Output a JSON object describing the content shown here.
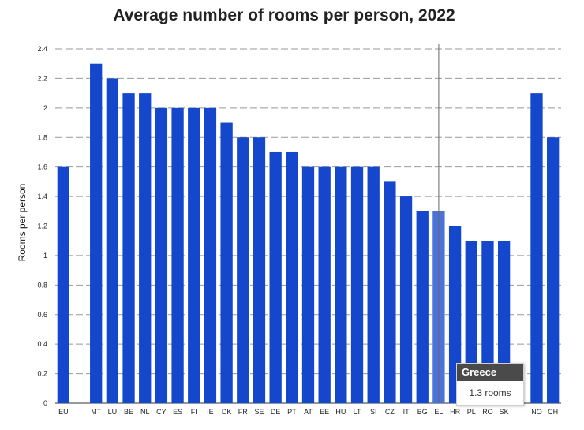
{
  "chart_data": {
    "type": "bar",
    "title": "Average number of rooms per person, 2022",
    "xlabel": "",
    "ylabel": "Rooms per person",
    "ylim": [
      0,
      2.4
    ],
    "yticks": [
      "0",
      "0.2",
      "0.4",
      "0.6",
      "0.8",
      "1",
      "1.2",
      "1.4",
      "1.6",
      "1.8",
      "2",
      "2.2",
      "2.4"
    ],
    "grid": true,
    "categories": [
      "EU",
      "",
      "MT",
      "LU",
      "BE",
      "NL",
      "CY",
      "ES",
      "FI",
      "IE",
      "DK",
      "FR",
      "SE",
      "DE",
      "PT",
      "AT",
      "EE",
      "HU",
      "LT",
      "SI",
      "CZ",
      "IT",
      "BG",
      "EL",
      "HR",
      "PL",
      "RO",
      "SK",
      "",
      "NO",
      "CH"
    ],
    "values": [
      1.6,
      null,
      2.3,
      2.2,
      2.1,
      2.1,
      2.0,
      2.0,
      2.0,
      2.0,
      1.9,
      1.8,
      1.8,
      1.7,
      1.7,
      1.6,
      1.6,
      1.6,
      1.6,
      1.6,
      1.5,
      1.4,
      1.3,
      1.3,
      1.2,
      1.1,
      1.1,
      1.1,
      null,
      2.1,
      1.8
    ],
    "colors": {
      "bar": "#1447cc",
      "highlight": "#4a72d8",
      "grid": "#999999",
      "crosshair": "#666666"
    },
    "highlight_category": "EL"
  },
  "tooltip": {
    "title": "Greece",
    "value": "1.3 rooms"
  }
}
